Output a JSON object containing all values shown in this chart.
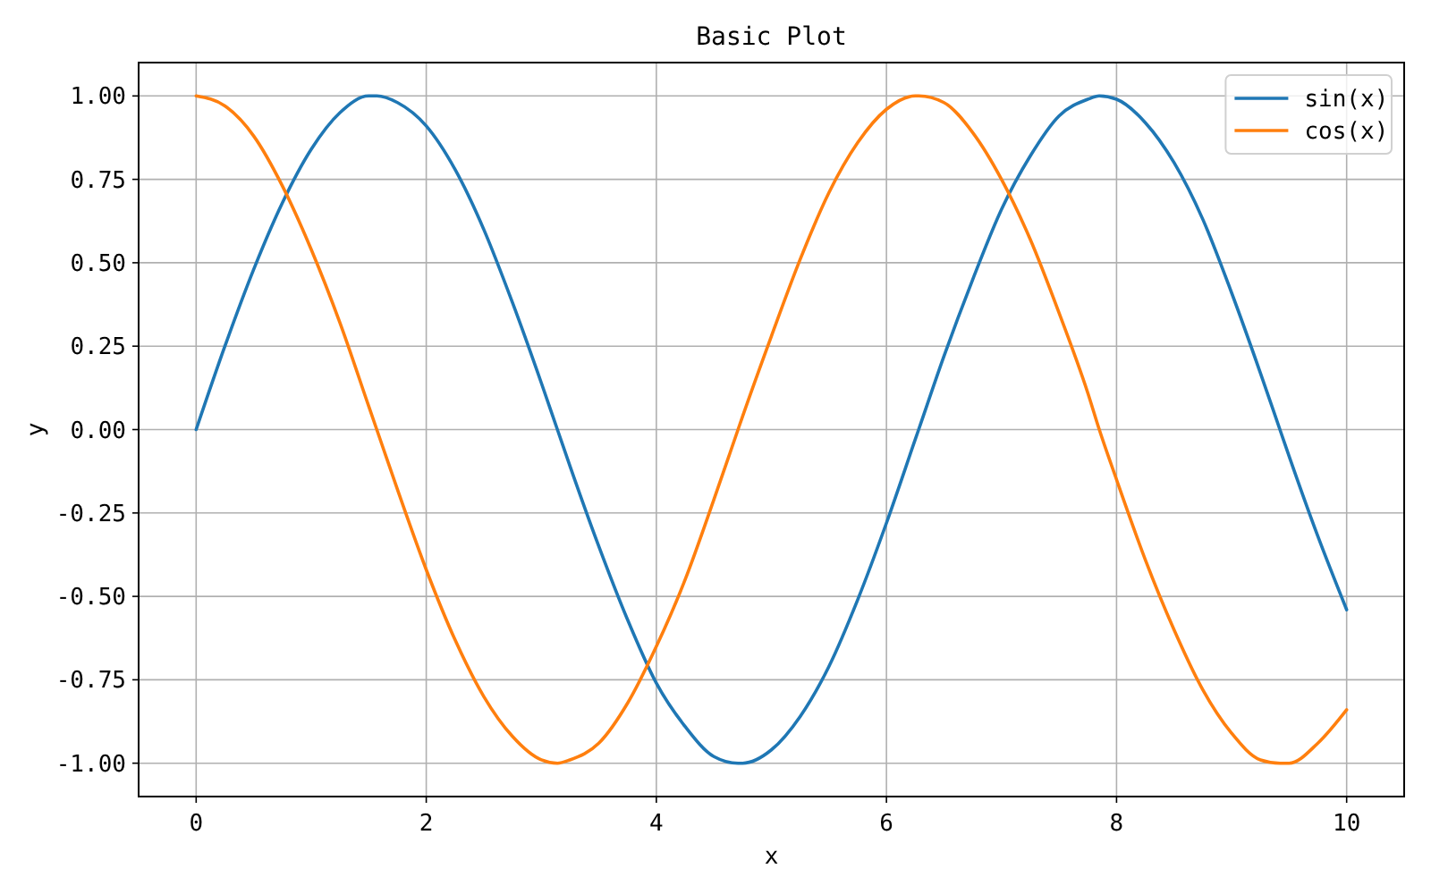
{
  "chart_data": {
    "type": "line",
    "title": "Basic Plot",
    "xlabel": "x",
    "ylabel": "y",
    "x": [
      0,
      0.25,
      0.5,
      0.75,
      1,
      1.25,
      1.5,
      1.57,
      1.75,
      2,
      2.25,
      2.5,
      2.75,
      3,
      3.14,
      3.25,
      3.5,
      3.75,
      4,
      4.25,
      4.5,
      4.71,
      4.75,
      5,
      5.25,
      5.5,
      5.75,
      6,
      6.25,
      6.28,
      6.5,
      6.75,
      7,
      7.25,
      7.5,
      7.75,
      7.85,
      8,
      8.25,
      8.5,
      8.75,
      9,
      9.25,
      9.42,
      9.5,
      9.75,
      10
    ],
    "series": [
      {
        "name": "sin(x)",
        "color": "#1f77b4",
        "values": [
          0,
          0.25,
          0.48,
          0.68,
          0.84,
          0.95,
          1.0,
          1.0,
          0.98,
          0.91,
          0.78,
          0.6,
          0.38,
          0.14,
          0.0,
          -0.11,
          -0.35,
          -0.57,
          -0.76,
          -0.89,
          -0.98,
          -1.0,
          -1.0,
          -0.96,
          -0.86,
          -0.71,
          -0.51,
          -0.28,
          -0.03,
          0.0,
          0.22,
          0.45,
          0.66,
          0.82,
          0.94,
          0.99,
          1.0,
          0.99,
          0.92,
          0.8,
          0.63,
          0.41,
          0.17,
          0.0,
          -0.08,
          -0.32,
          -0.54
        ]
      },
      {
        "name": "cos(x)",
        "color": "#ff7f0e",
        "values": [
          1.0,
          0.97,
          0.88,
          0.73,
          0.54,
          0.32,
          0.07,
          0.0,
          -0.18,
          -0.42,
          -0.63,
          -0.8,
          -0.92,
          -0.99,
          -1.0,
          -0.99,
          -0.94,
          -0.82,
          -0.65,
          -0.45,
          -0.21,
          0.0,
          0.04,
          0.28,
          0.51,
          0.71,
          0.86,
          0.96,
          1.0,
          1.0,
          0.98,
          0.89,
          0.75,
          0.57,
          0.35,
          0.11,
          0.0,
          -0.15,
          -0.39,
          -0.6,
          -0.78,
          -0.91,
          -0.99,
          -1.0,
          -1.0,
          -0.94,
          -0.84
        ]
      }
    ],
    "xlim": [
      -0.5,
      10.5
    ],
    "ylim": [
      -1.1,
      1.1
    ],
    "xticks": [
      0,
      2,
      4,
      6,
      8,
      10
    ],
    "yticks": [
      {
        "value": -1,
        "label": "-1.00"
      },
      {
        "value": -0.75,
        "label": "-0.75"
      },
      {
        "value": -0.5,
        "label": "-0.50"
      },
      {
        "value": -0.25,
        "label": "-0.25"
      },
      {
        "value": 0,
        "label": "0.00"
      },
      {
        "value": 0.25,
        "label": "0.25"
      },
      {
        "value": 0.5,
        "label": "0.50"
      },
      {
        "value": 0.75,
        "label": "0.75"
      },
      {
        "value": 1,
        "label": "1.00"
      }
    ],
    "grid": true,
    "legend": "top right"
  }
}
